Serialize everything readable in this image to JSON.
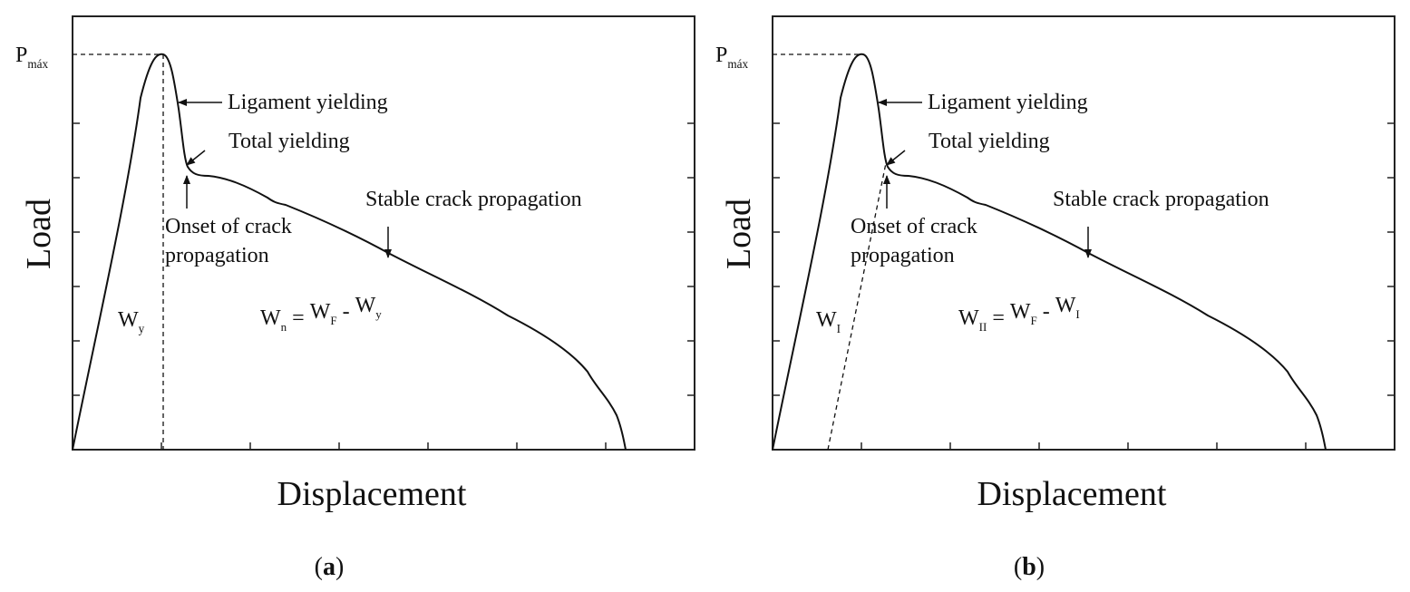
{
  "panels": [
    {
      "peak_label": {
        "main": "P",
        "sub": "máx"
      },
      "annotations": {
        "ligament": "Ligament yielding",
        "total": "Total yielding",
        "onset": [
          "Onset of crack",
          "propagation"
        ],
        "stable": "Stable crack propagation"
      },
      "energy_label": {
        "main": "W",
        "sub": "y"
      },
      "equation": [
        {
          "main": "W",
          "sub": "n"
        },
        "=",
        {
          "main": "W",
          "sub": "F"
        },
        "-",
        {
          "main": "W",
          "sub": "y"
        }
      ],
      "y_label": "Load",
      "x_label": "Displacement",
      "caption": {
        "open": "(",
        "letter": "a",
        "close": ")"
      }
    },
    {
      "peak_label": {
        "main": "P",
        "sub": "máx"
      },
      "annotations": {
        "ligament": "Ligament yielding",
        "total": "Total yielding",
        "onset": [
          "Onset of crack",
          "propagation"
        ],
        "stable": "Stable crack propagation"
      },
      "energy_label": {
        "main": "W",
        "sub": "I"
      },
      "equation": [
        {
          "main": "W",
          "sub": "II"
        },
        "=",
        {
          "main": "W",
          "sub": "F"
        },
        "-",
        {
          "main": "W",
          "sub": "I"
        }
      ],
      "y_label": "Load",
      "x_label": "Displacement",
      "caption": {
        "open": "(",
        "letter": "b",
        "close": ")"
      }
    }
  ]
}
